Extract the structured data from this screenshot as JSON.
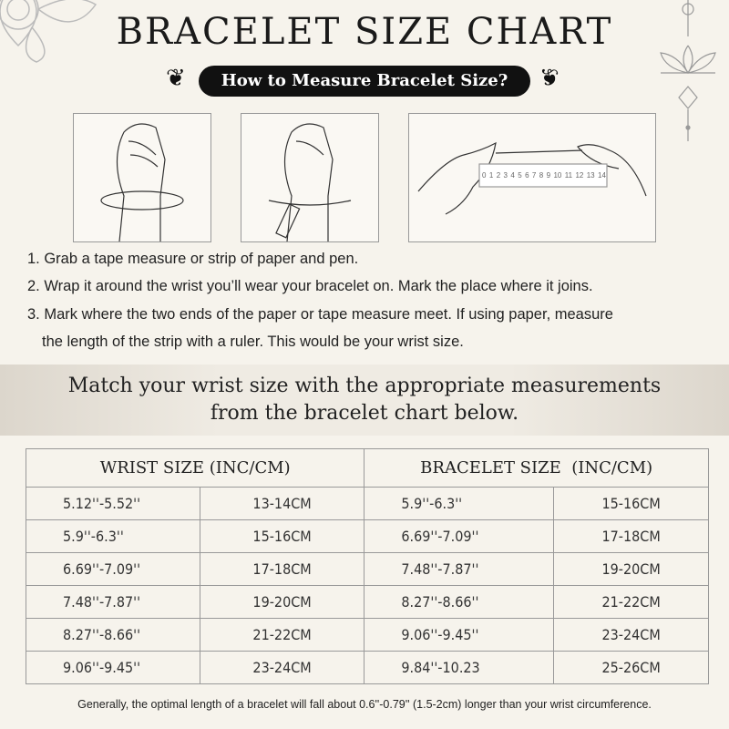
{
  "title": "BRACELET SIZE CHART",
  "subtitle": "How to Measure Bracelet Size?",
  "ruler_labels": [
    "0",
    "1",
    "2",
    "3",
    "4",
    "5",
    "6",
    "7",
    "8",
    "9",
    "10",
    "11",
    "12",
    "13",
    "14"
  ],
  "steps": [
    "1. Grab a tape measure or strip of paper and pen.",
    "2. Wrap it around the wrist you’ll wear your bracelet on. Mark the place where it joins.",
    "3. Mark where the two ends of the paper or tape measure meet. If using paper, measure",
    "the length of the strip with a ruler. This would be your wrist size."
  ],
  "banner": {
    "line1": "Match your wrist size with the appropriate measurements",
    "line2": "from the bracelet chart below."
  },
  "table": {
    "headers": [
      "WRIST SIZE (INC/CM)",
      "BRACELET SIZE  (INC/CM)"
    ],
    "rows": [
      [
        "5.12''-5.52''",
        "13-14CM",
        "5.9''-6.3''",
        "15-16CM"
      ],
      [
        "5.9''-6.3''",
        "15-16CM",
        "6.69''-7.09''",
        "17-18CM"
      ],
      [
        "6.69''-7.09''",
        "17-18CM",
        "7.48''-7.87''",
        "19-20CM"
      ],
      [
        "7.48''-7.87''",
        "19-20CM",
        "8.27''-8.66''",
        "21-22CM"
      ],
      [
        "8.27''-8.66''",
        "21-22CM",
        "9.06''-9.45''",
        "23-24CM"
      ],
      [
        "9.06''-9.45''",
        "23-24CM",
        "9.84''-10.23",
        "25-26CM"
      ]
    ]
  },
  "footer": "Generally, the optimal length of a bracelet will fall about 0.6''-0.79'' (1.5-2cm) longer than your wrist circumference."
}
